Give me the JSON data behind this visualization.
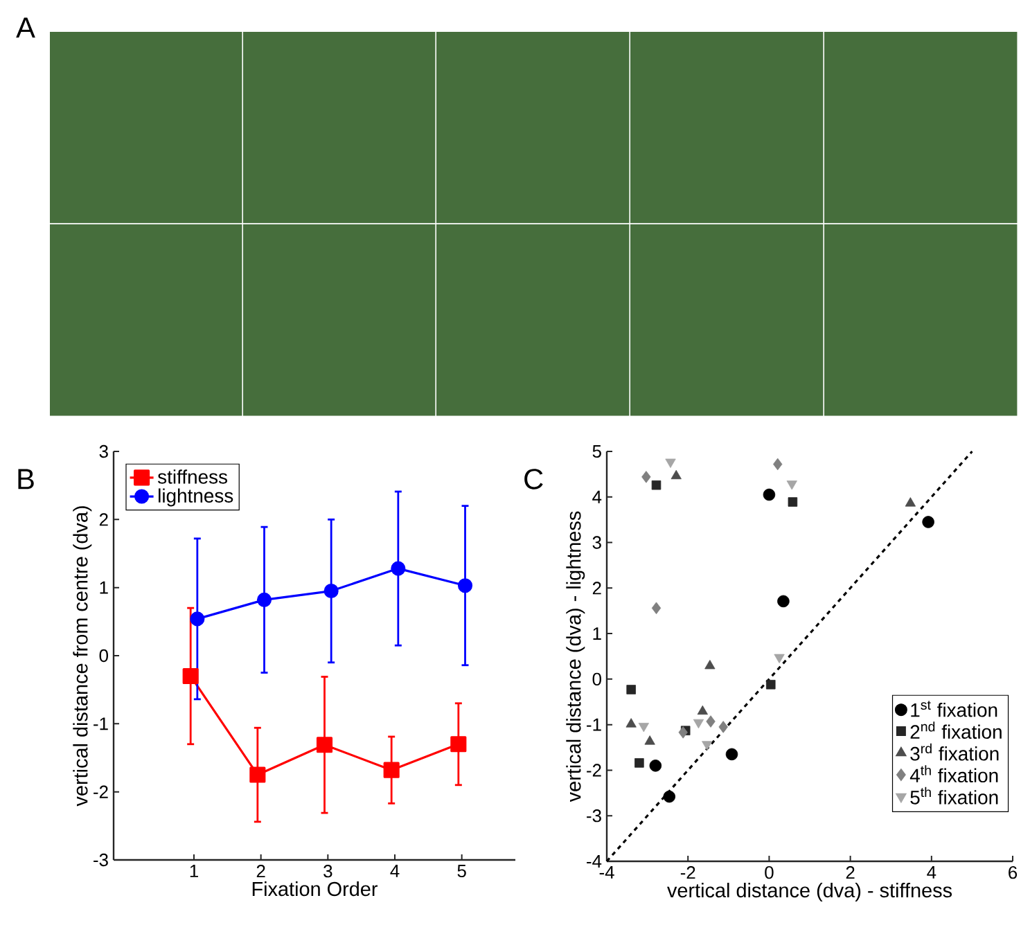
{
  "chart_data": [
    {
      "type": "other",
      "annotations": [
        "A"
      ]
    },
    {
      "type": "line",
      "annotations": [
        "B"
      ],
      "xlabel": "Fixation Order",
      "ylabel": "vertical distance from centre (dva)",
      "xlim": [
        -0.2,
        5.8
      ],
      "ylim": [
        -3,
        3
      ],
      "xticks": [
        1,
        2,
        3,
        4,
        5
      ],
      "yticks": [
        -3,
        -2,
        -1,
        0,
        1,
        2,
        3
      ],
      "legend": "top left",
      "grid": false,
      "series": [
        {
          "name": "stiffness",
          "color": "#ff0000",
          "marker": "square",
          "x": [
            0.95,
            1.95,
            2.95,
            3.95,
            4.95
          ],
          "values": [
            -0.3,
            -1.75,
            -1.31,
            -1.68,
            -1.3
          ],
          "errors": [
            1.0,
            0.69,
            1.0,
            0.49,
            0.6
          ]
        },
        {
          "name": "lightness",
          "color": "#0000ff",
          "marker": "circle",
          "x": [
            1.05,
            2.05,
            3.05,
            4.05,
            5.05
          ],
          "values": [
            0.54,
            0.82,
            0.95,
            1.28,
            1.03
          ],
          "errors": [
            1.18,
            1.07,
            1.05,
            1.13,
            1.17
          ]
        }
      ]
    },
    {
      "type": "scatter",
      "annotations": [
        "C"
      ],
      "xlabel": "vertical distance (dva) - stiffness",
      "ylabel": "vertical distance (dva) - lightness",
      "xlim": [
        -4,
        6
      ],
      "ylim": [
        -4,
        5
      ],
      "xticks": [
        -4,
        -2,
        0,
        2,
        4,
        6
      ],
      "yticks": [
        -4,
        -3,
        -2,
        -1,
        0,
        1,
        2,
        3,
        4,
        5
      ],
      "legend": "bottom right",
      "grid": false,
      "series": [
        {
          "name": "1$^{st}$ fixation",
          "color": "#000000",
          "marker": "circle",
          "x": [
            0.0,
            3.92,
            0.35,
            -0.92,
            -2.8,
            -2.46
          ],
          "values": [
            4.05,
            3.45,
            1.71,
            -1.65,
            -1.9,
            -2.58
          ]
        },
        {
          "name": "2$^{nd}$ fixation",
          "color": "#262626",
          "marker": "square",
          "x": [
            -2.78,
            0.58,
            0.04,
            -3.4,
            -2.06,
            -3.2
          ],
          "values": [
            4.26,
            3.89,
            -0.12,
            -0.23,
            -1.13,
            -1.84
          ]
        },
        {
          "name": "3$^{rd}$ fixation",
          "color": "#4d4d4d",
          "marker": "triangle",
          "x": [
            -2.29,
            3.48,
            -1.46,
            -3.4,
            -2.94,
            -1.64
          ],
          "values": [
            4.46,
            3.86,
            0.29,
            -0.99,
            -1.37,
            -0.71
          ]
        },
        {
          "name": "4$^{th}$ fixation",
          "color": "#808080",
          "marker": "diamond",
          "x": [
            -3.03,
            0.21,
            -2.78,
            -2.12,
            -1.44,
            -1.13
          ],
          "values": [
            4.44,
            4.72,
            1.56,
            -1.17,
            -0.93,
            -1.05
          ]
        },
        {
          "name": "5$^{th}$ fixation",
          "color": "#a6a6a6",
          "marker": "triangle-down",
          "x": [
            -2.43,
            0.56,
            0.25,
            -3.09,
            -1.74,
            -1.53
          ],
          "values": [
            4.77,
            4.29,
            0.48,
            -1.03,
            -0.95,
            -1.43
          ]
        },
        {
          "type": "line",
          "color": "#000000",
          "marker": "none",
          "line_style": "dashed",
          "x": [
            -4,
            5
          ],
          "values": [
            -4,
            5
          ]
        }
      ]
    }
  ]
}
